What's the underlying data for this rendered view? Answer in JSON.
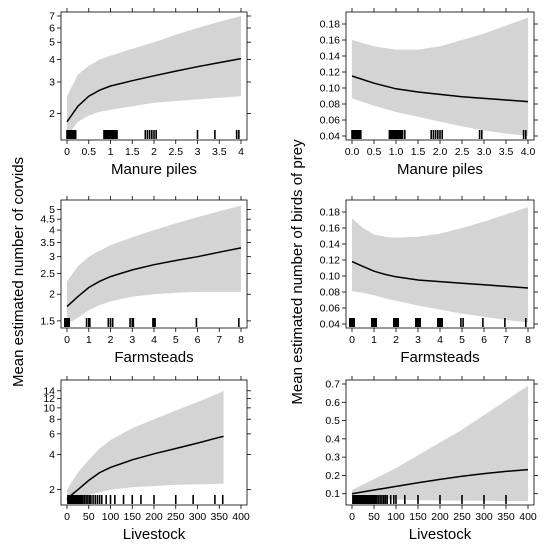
{
  "figure": {
    "left_ylabel": "Mean estimated number of corvids",
    "right_ylabel": "Mean estimated number of birds of prey"
  },
  "chart_data": [
    {
      "type": "line",
      "xlabel": "Manure piles",
      "ylabel": "Mean estimated number of corvids",
      "xlim": [
        0,
        4
      ],
      "ylim": [
        1.5,
        7
      ],
      "log_y": true,
      "x_ticks": [
        "0",
        "0.5",
        "1",
        "1.5",
        "2",
        "2.5",
        "3",
        "3.5",
        "4"
      ],
      "y_ticks": [
        "2",
        "3",
        "4",
        "5",
        "6",
        "7"
      ],
      "x": [
        0,
        0.25,
        0.5,
        0.75,
        1,
        1.5,
        2,
        2.5,
        3,
        3.5,
        4
      ],
      "series": [
        {
          "values": [
            1.8,
            2.2,
            2.5,
            2.7,
            2.85,
            3.05,
            3.25,
            3.45,
            3.65,
            3.85,
            4.05
          ]
        }
      ],
      "band_upper": [
        2.5,
        3.3,
        3.7,
        4.0,
        4.2,
        4.6,
        5.0,
        5.5,
        6.0,
        6.5,
        7.0
      ],
      "band_lower": [
        1.5,
        1.8,
        1.95,
        2.05,
        2.1,
        2.2,
        2.3,
        2.35,
        2.4,
        2.45,
        2.5
      ],
      "rug": [
        0,
        0.02,
        0.05,
        0.08,
        0.1,
        0.13,
        0.15,
        0.18,
        0.2,
        0.85,
        0.88,
        0.9,
        0.92,
        0.95,
        0.97,
        1.0,
        1.02,
        1.05,
        1.08,
        1.1,
        1.13,
        1.15,
        1.8,
        1.85,
        1.9,
        1.95,
        2.0,
        2.05,
        3.0,
        3.4,
        3.9,
        3.95
      ]
    },
    {
      "type": "line",
      "xlabel": "Manure piles",
      "ylabel": "Mean estimated number of birds of prey",
      "xlim": [
        0,
        4
      ],
      "ylim": [
        0.04,
        0.19
      ],
      "log_y": false,
      "x_ticks": [
        "0.0",
        "0.5",
        "1.0",
        "1.5",
        "2.0",
        "2.5",
        "3.0",
        "3.5",
        "4.0"
      ],
      "y_ticks": [
        "0.04",
        "0.06",
        "0.08",
        "0.10",
        "0.12",
        "0.14",
        "0.16",
        "0.18"
      ],
      "x": [
        0,
        0.5,
        1,
        1.5,
        2,
        2.5,
        3,
        3.5,
        4
      ],
      "series": [
        {
          "values": [
            0.115,
            0.106,
            0.099,
            0.095,
            0.092,
            0.089,
            0.087,
            0.085,
            0.083
          ]
        }
      ],
      "band_upper": [
        0.16,
        0.152,
        0.148,
        0.148,
        0.152,
        0.16,
        0.168,
        0.178,
        0.188
      ],
      "band_lower": [
        0.087,
        0.078,
        0.07,
        0.064,
        0.058,
        0.052,
        0.047,
        0.043,
        0.04
      ],
      "rug": [
        0,
        0.02,
        0.05,
        0.08,
        0.1,
        0.13,
        0.15,
        0.18,
        0.2,
        0.85,
        0.88,
        0.9,
        0.92,
        0.95,
        0.97,
        1.0,
        1.02,
        1.05,
        1.08,
        1.1,
        1.13,
        1.15,
        1.2,
        1.8,
        1.85,
        1.9,
        1.95,
        2.0,
        2.05,
        2.9,
        2.95,
        3.9,
        3.95
      ]
    },
    {
      "type": "line",
      "xlabel": "Farmsteads",
      "ylabel": "Mean estimated number of corvids",
      "xlim": [
        0,
        8
      ],
      "ylim": [
        1.45,
        5.3
      ],
      "log_y": true,
      "x_ticks": [
        "0",
        "1",
        "2",
        "3",
        "4",
        "5",
        "6",
        "7",
        "8"
      ],
      "y_ticks": [
        "1.5",
        "2",
        "2.5",
        "3",
        "3.5",
        "4",
        "4.5",
        "5"
      ],
      "x": [
        0,
        0.5,
        1,
        1.5,
        2,
        3,
        4,
        5,
        6,
        7,
        8
      ],
      "series": [
        {
          "values": [
            1.75,
            1.95,
            2.15,
            2.3,
            2.42,
            2.6,
            2.75,
            2.88,
            3.0,
            3.15,
            3.3
          ]
        }
      ],
      "band_upper": [
        2.3,
        2.7,
        3.0,
        3.2,
        3.4,
        3.7,
        4.0,
        4.3,
        4.6,
        4.9,
        5.2
      ],
      "band_lower": [
        1.45,
        1.55,
        1.68,
        1.78,
        1.85,
        1.95,
        2.0,
        2.03,
        2.05,
        2.05,
        2.05
      ],
      "rug": [
        -0.1,
        -0.05,
        0,
        0.05,
        0.1,
        0.9,
        1.0,
        1.05,
        1.9,
        2.0,
        2.1,
        2.9,
        3.0,
        3.05,
        3.95,
        4.0,
        4.05,
        5.95,
        7.9
      ]
    },
    {
      "type": "line",
      "xlabel": "Farmsteads",
      "ylabel": "Mean estimated number of birds of prey",
      "xlim": [
        0,
        8
      ],
      "ylim": [
        0.04,
        0.19
      ],
      "log_y": false,
      "x_ticks": [
        "0",
        "1",
        "2",
        "3",
        "4",
        "5",
        "6",
        "7",
        "8"
      ],
      "y_ticks": [
        "0.04",
        "0.06",
        "0.08",
        "0.10",
        "0.12",
        "0.14",
        "0.16",
        "0.18"
      ],
      "x": [
        0,
        0.5,
        1,
        1.5,
        2,
        3,
        4,
        5,
        6,
        7,
        8
      ],
      "series": [
        {
          "values": [
            0.118,
            0.112,
            0.106,
            0.102,
            0.099,
            0.095,
            0.093,
            0.091,
            0.089,
            0.087,
            0.085
          ]
        }
      ],
      "band_upper": [
        0.172,
        0.16,
        0.152,
        0.149,
        0.148,
        0.149,
        0.153,
        0.16,
        0.168,
        0.177,
        0.186
      ],
      "band_lower": [
        0.081,
        0.079,
        0.076,
        0.072,
        0.069,
        0.063,
        0.058,
        0.053,
        0.049,
        0.045,
        0.042
      ],
      "rug": [
        -0.1,
        -0.05,
        0,
        0.05,
        0.1,
        0.9,
        0.95,
        1.0,
        1.05,
        1.1,
        1.9,
        1.95,
        2.0,
        2.05,
        2.1,
        2.9,
        2.95,
        3.0,
        3.05,
        3.1,
        3.9,
        3.95,
        4.0,
        4.05,
        4.1,
        4.95,
        5.05,
        5.95,
        6.95,
        7.9
      ]
    },
    {
      "type": "line",
      "xlabel": "Livestock",
      "ylabel": "Mean estimated number of corvids",
      "xlim": [
        0,
        400
      ],
      "ylim": [
        1.6,
        16
      ],
      "log_y": true,
      "x_ticks": [
        "0",
        "50",
        "100",
        "150",
        "200",
        "250",
        "300",
        "350",
        "400"
      ],
      "y_ticks": [
        "2",
        "4",
        "6",
        "8",
        "10",
        "12",
        "14"
      ],
      "x": [
        0,
        10,
        25,
        50,
        75,
        100,
        150,
        200,
        250,
        300,
        350,
        360
      ],
      "series": [
        {
          "values": [
            1.65,
            1.8,
            2.0,
            2.4,
            2.8,
            3.1,
            3.6,
            4.05,
            4.5,
            5.0,
            5.6,
            5.7
          ]
        }
      ],
      "band_upper": [
        2.0,
        2.3,
        2.8,
        3.6,
        4.5,
        5.3,
        6.7,
        8.0,
        9.5,
        11.2,
        13.4,
        14.0
      ],
      "band_lower": [
        1.6,
        1.65,
        1.7,
        1.8,
        1.9,
        2.0,
        2.1,
        2.15,
        2.2,
        2.22,
        2.25,
        2.25
      ],
      "rug": [
        2,
        5,
        8,
        10,
        12,
        15,
        18,
        20,
        22,
        25,
        28,
        30,
        33,
        36,
        40,
        44,
        48,
        52,
        55,
        60,
        65,
        70,
        75,
        80,
        90,
        100,
        110,
        130,
        150,
        170,
        200,
        250,
        290,
        340,
        358
      ]
    },
    {
      "type": "line",
      "xlabel": "Livestock",
      "ylabel": "Mean estimated number of birds of prey",
      "xlim": [
        0,
        400
      ],
      "ylim": [
        0.06,
        0.7
      ],
      "log_y": false,
      "x_ticks": [
        "0",
        "50",
        "100",
        "150",
        "200",
        "250",
        "300",
        "350",
        "400"
      ],
      "y_ticks": [
        "0.1",
        "0.2",
        "0.3",
        "0.4",
        "0.5",
        "0.6",
        "0.7"
      ],
      "x": [
        0,
        25,
        50,
        75,
        100,
        150,
        200,
        250,
        300,
        350,
        400
      ],
      "series": [
        {
          "values": [
            0.1,
            0.11,
            0.12,
            0.13,
            0.14,
            0.16,
            0.178,
            0.195,
            0.21,
            0.222,
            0.232
          ]
        }
      ],
      "band_upper": [
        0.12,
        0.15,
        0.18,
        0.21,
        0.24,
        0.31,
        0.38,
        0.45,
        0.53,
        0.61,
        0.69
      ],
      "band_lower": [
        0.08,
        0.075,
        0.072,
        0.07,
        0.068,
        0.065,
        0.063,
        0.062,
        0.061,
        0.06,
        0.06
      ],
      "rug": [
        2,
        5,
        8,
        10,
        12,
        14,
        16,
        18,
        20,
        22,
        24,
        26,
        28,
        30,
        32,
        34,
        36,
        38,
        40,
        42,
        45,
        48,
        50,
        53,
        56,
        60,
        64,
        68,
        72,
        76,
        80,
        88,
        95,
        100,
        120,
        150,
        200,
        250,
        300,
        350
      ]
    }
  ]
}
